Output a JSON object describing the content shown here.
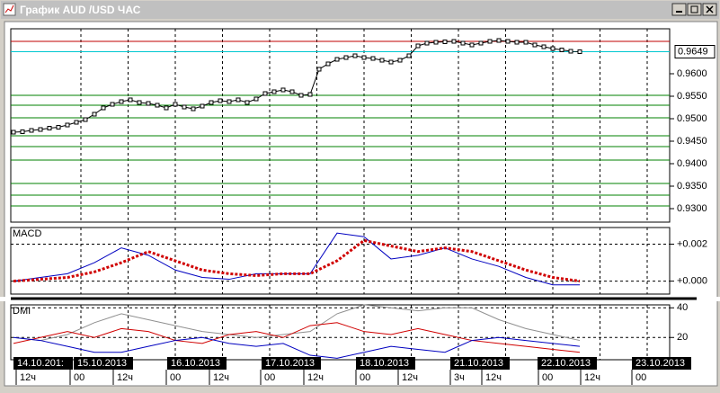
{
  "window": {
    "title": "График AUD /USD  ЧАС"
  },
  "chart_data": [
    {
      "type": "line",
      "color": "#000000",
      "values": [
        0.947,
        0.9471,
        0.9474,
        0.9476,
        0.9479,
        0.9481,
        0.9486,
        0.9492,
        0.9498,
        0.951,
        0.9524,
        0.9532,
        0.9538,
        0.9542,
        0.9536,
        0.9534,
        0.953,
        0.9524,
        0.9532,
        0.9526,
        0.9522,
        0.9528,
        0.9536,
        0.954,
        0.9538,
        0.9542,
        0.9536,
        0.9544,
        0.9556,
        0.956,
        0.9564,
        0.956,
        0.9552,
        0.9554,
        0.961,
        0.9622,
        0.9632,
        0.9636,
        0.964,
        0.9636,
        0.9634,
        0.963,
        0.9626,
        0.963,
        0.964,
        0.9662,
        0.9668,
        0.967,
        0.9671,
        0.9672,
        0.9668,
        0.9664,
        0.9668,
        0.9672,
        0.9674,
        0.9672,
        0.967,
        0.967,
        0.9664,
        0.966,
        0.9656,
        0.9653,
        0.965,
        0.9649
      ],
      "ylim": [
        0.927,
        0.97
      ],
      "yticks": [
        {
          "value": 0.96,
          "label": "0.9600"
        },
        {
          "value": 0.955,
          "label": "0.9550"
        },
        {
          "value": 0.95,
          "label": "0.9500"
        },
        {
          "value": 0.945,
          "label": "0.9450"
        },
        {
          "value": 0.94,
          "label": "0.9400"
        },
        {
          "value": 0.935,
          "label": "0.9350"
        },
        {
          "value": 0.93,
          "label": "0.9300"
        }
      ],
      "last_value": 0.9649,
      "hlines": [
        {
          "value": 0.9672,
          "color": "#c00000"
        },
        {
          "value": 0.9649,
          "color": "#00c8d0"
        },
        {
          "value": 0.9552,
          "color": "#008000"
        },
        {
          "value": 0.953,
          "color": "#008000"
        },
        {
          "value": 0.9502,
          "color": "#008000"
        },
        {
          "value": 0.9462,
          "color": "#008000"
        },
        {
          "value": 0.9438,
          "color": "#008000"
        },
        {
          "value": 0.9408,
          "color": "#008000"
        },
        {
          "value": 0.9356,
          "color": "#008000"
        },
        {
          "value": 0.933,
          "color": "#008000"
        },
        {
          "value": 0.9306,
          "color": "#008000"
        }
      ]
    },
    {
      "type": "line",
      "title": "MACD",
      "series": [
        {
          "color": "#0000c0",
          "values": [
            0.0,
            0.0002,
            0.0004,
            0.001,
            0.0018,
            0.0014,
            0.0006,
            0.0002,
            0.0001,
            0.0004,
            0.0004,
            0.0004,
            0.0026,
            0.0024,
            0.0012,
            0.0014,
            0.0018,
            0.0012,
            0.0008,
            0.0002,
            -0.0002,
            -0.0002
          ]
        },
        {
          "color": "#d00000",
          "dotted": true,
          "values": [
            0.0,
            0.0001,
            0.0002,
            0.0005,
            0.001,
            0.0016,
            0.0011,
            0.0006,
            0.0004,
            0.0003,
            0.0004,
            0.0004,
            0.0011,
            0.0022,
            0.0019,
            0.0016,
            0.0018,
            0.0016,
            0.0011,
            0.0006,
            0.0002,
            0.0
          ]
        }
      ],
      "ylim": [
        -0.0007,
        0.0029
      ],
      "yticks": [
        {
          "value": 0.002,
          "label": "+0.002"
        },
        {
          "value": 0,
          "label": "+0.000"
        }
      ]
    },
    {
      "type": "line",
      "title": "DMI",
      "series": [
        {
          "color": "#909090",
          "values": [
            20,
            18,
            22,
            30,
            36,
            32,
            28,
            24,
            22,
            20,
            22,
            24,
            36,
            42,
            40,
            38,
            40,
            40,
            32,
            26,
            22,
            18
          ]
        },
        {
          "color": "#d00000",
          "values": [
            16,
            20,
            24,
            20,
            26,
            24,
            18,
            16,
            22,
            24,
            20,
            28,
            30,
            24,
            22,
            26,
            22,
            18,
            16,
            14,
            12,
            10
          ]
        },
        {
          "color": "#0000c0",
          "values": [
            20,
            18,
            14,
            10,
            10,
            14,
            18,
            20,
            16,
            14,
            16,
            8,
            6,
            10,
            14,
            12,
            10,
            18,
            20,
            18,
            16,
            14
          ]
        }
      ],
      "ylim": [
        5,
        42
      ],
      "yticks": [
        40,
        20
      ]
    }
  ],
  "xaxis": {
    "dates": [
      "14.10.201:",
      "15.10.2013",
      "16.10.2013",
      "17.10.2013",
      "18.10.2013",
      "21.10.2013",
      "22.10.2013",
      "23.10.2013"
    ],
    "hours": [
      "12ч",
      "00",
      "12ч",
      "00",
      "12ч",
      "00",
      "12ч",
      "00",
      "12ч",
      "3ч",
      "12ч",
      "00",
      "12ч",
      "00"
    ]
  }
}
